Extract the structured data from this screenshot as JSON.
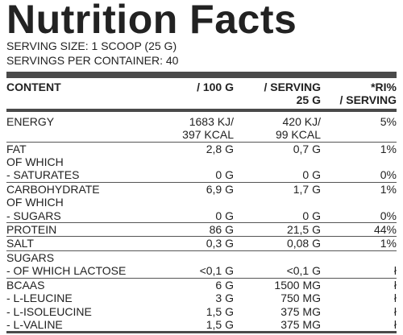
{
  "header": {
    "title": "Nutrition Facts",
    "serving_size": "SERVING SIZE: 1 SCOOP (25 G)",
    "servings_per_container": "SERVINGS PER CONTAINER: 40"
  },
  "table": {
    "columns": [
      "CONTENT",
      "/ 100 G",
      [
        "/ SERVING",
        "25 G"
      ],
      [
        "*RI%",
        "/ SERVING"
      ]
    ],
    "groups": [
      {
        "rows": [
          [
            "ENERGY",
            [
              "1683 KJ/",
              "397 KCAL"
            ],
            [
              "420 KJ/",
              "99 KCAL"
            ],
            "5%"
          ]
        ]
      },
      {
        "rows": [
          [
            "FAT",
            "2,8 G",
            "0,7 G",
            "1%"
          ],
          [
            "OF WHICH"
          ],
          [
            "- SATURATES",
            "0 G",
            "0 G",
            "0%"
          ]
        ]
      },
      {
        "rows": [
          [
            "CARBOHYDRATE",
            "6,9 G",
            "1,7 G",
            "1%"
          ],
          [
            "OF WHICH"
          ],
          [
            "- SUGARS",
            "0 G",
            "0 G",
            "0%"
          ]
        ]
      },
      {
        "rows": [
          [
            "PROTEIN",
            "86 G",
            "21,5 G",
            "44%"
          ]
        ]
      },
      {
        "rows": [
          [
            "SALT",
            "0,3 G",
            "0,08 G",
            "1%"
          ]
        ]
      },
      {
        "rows": [
          [
            "SUGARS"
          ],
          [
            "- OF WHICH LACTOSE",
            "<0,1 G",
            "<0,1 G",
            "ł"
          ]
        ]
      },
      {
        "rows": [
          [
            "BCAAS",
            "6 G",
            "1500 MG",
            "ł"
          ],
          [
            "- L-LEUCINE",
            "3 G",
            "750 MG",
            "ł"
          ],
          [
            "- L-ISOLEUCINE",
            "1,5 G",
            "375 MG",
            "ł"
          ],
          [
            "- L-VALINE",
            "1,5 G",
            "375 MG",
            "ł"
          ]
        ]
      }
    ]
  }
}
